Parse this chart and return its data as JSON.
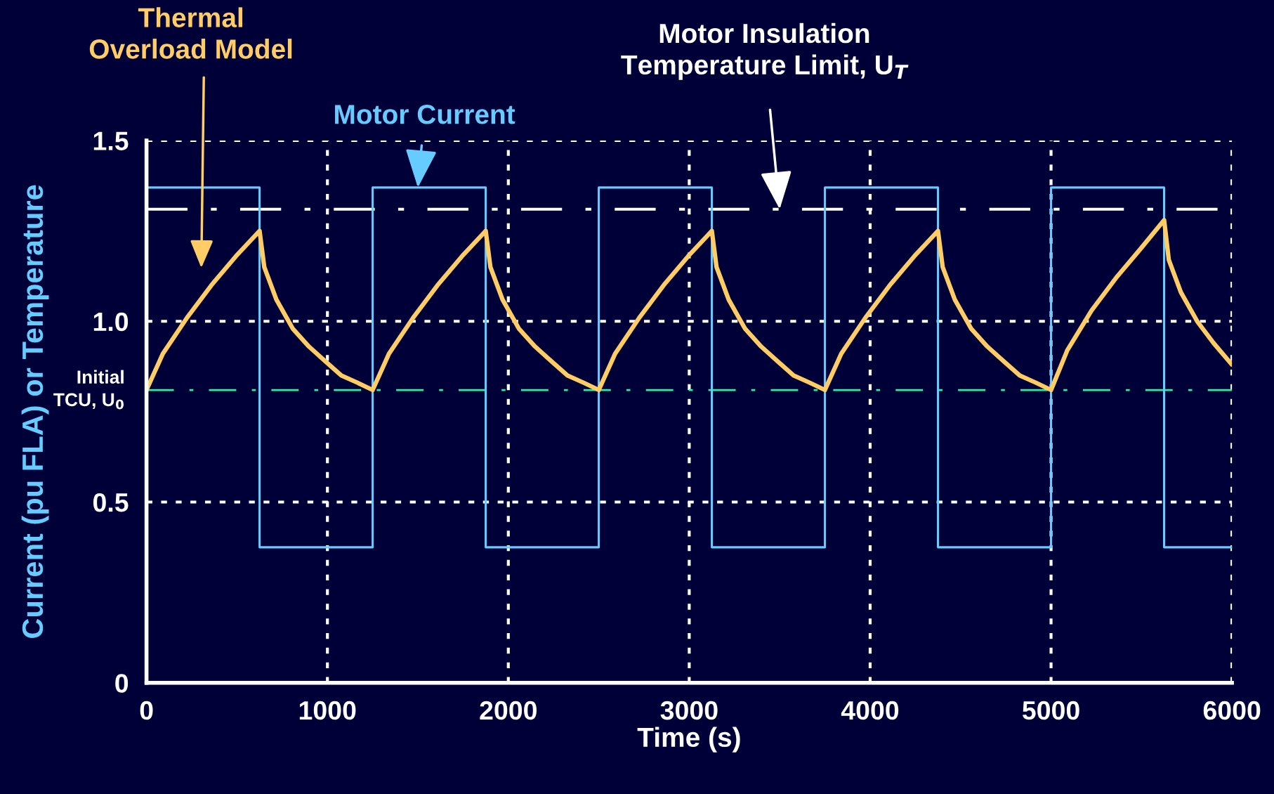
{
  "chart_data": {
    "type": "line",
    "xlabel": "Time (s)",
    "ylabel": "Current (pu FLA) or Temperature",
    "xlim": [
      0,
      6000
    ],
    "xticks": [
      0,
      1000,
      2000,
      3000,
      4000,
      5000,
      6000
    ],
    "ylim": [
      0,
      1.5
    ],
    "yticks": [
      0,
      0.5,
      {
        "value": 1,
        "label": "1.0"
      },
      1.5
    ],
    "grid": true,
    "legend": false,
    "marker": "none",
    "line_style": "solid",
    "series": [
      {
        "type": "step",
        "color": "#66ccff",
        "x": [
          0,
          625,
          1250,
          1875,
          2500,
          3125,
          3750,
          4375,
          5000,
          5625,
          6000
        ],
        "values": [
          1.37,
          0.375,
          1.37,
          0.375,
          1.37,
          0.375,
          1.37,
          0.375,
          1.37,
          0.375,
          0.375
        ]
      },
      {
        "color": "#ffcc66",
        "x": [
          0,
          90,
          224,
          359,
          494,
          625,
          651,
          718,
          808,
          898,
          987,
          1077,
          1167,
          1250,
          1340,
          1474,
          1609,
          1744,
          1875,
          1901,
          1968,
          2058,
          2148,
          2237,
          2327,
          2417,
          2500,
          2590,
          2724,
          2859,
          2994,
          3125,
          3151,
          3218,
          3308,
          3398,
          3487,
          3577,
          3667,
          3750,
          3840,
          3974,
          4109,
          4244,
          4375,
          4401,
          4468,
          4558,
          4648,
          4737,
          4827,
          4917,
          5000,
          5090,
          5224,
          5359,
          5494,
          5625,
          5651,
          5718,
          5808,
          5898,
          6000
        ],
        "values": [
          0.81,
          0.91,
          1.01,
          1.1,
          1.18,
          1.25,
          1.15,
          1.06,
          0.98,
          0.93,
          0.89,
          0.85,
          0.83,
          0.81,
          0.91,
          1.01,
          1.1,
          1.18,
          1.25,
          1.15,
          1.06,
          0.98,
          0.93,
          0.89,
          0.85,
          0.83,
          0.81,
          0.91,
          1.01,
          1.1,
          1.18,
          1.25,
          1.15,
          1.06,
          0.98,
          0.93,
          0.89,
          0.85,
          0.83,
          0.81,
          0.91,
          1.01,
          1.1,
          1.18,
          1.25,
          1.15,
          1.06,
          0.98,
          0.93,
          0.89,
          0.85,
          0.83,
          0.81,
          0.92,
          1.03,
          1.12,
          1.2,
          1.28,
          1.17,
          1.08,
          1.0,
          0.94,
          0.88
        ]
      }
    ],
    "ref_lines": [
      {
        "axis": "y",
        "value": 1.31,
        "color": "#ffffff",
        "line_style": "dashdot"
      },
      {
        "axis": "y",
        "value": 0.81,
        "color": "#33ee99",
        "line_style": "dashdot",
        "label": "Initial\nTCU, U$_{0}$"
      }
    ],
    "annotations": [
      "Thermal\nOverload Model",
      {
        "text": "Motor Current",
        "x": 1500,
        "y": 1.37
      },
      {
        "text": "Motor Insulation\nTemperature Limit, U$_{T}$",
        "x": 3500,
        "y": 1.31
      }
    ]
  }
}
